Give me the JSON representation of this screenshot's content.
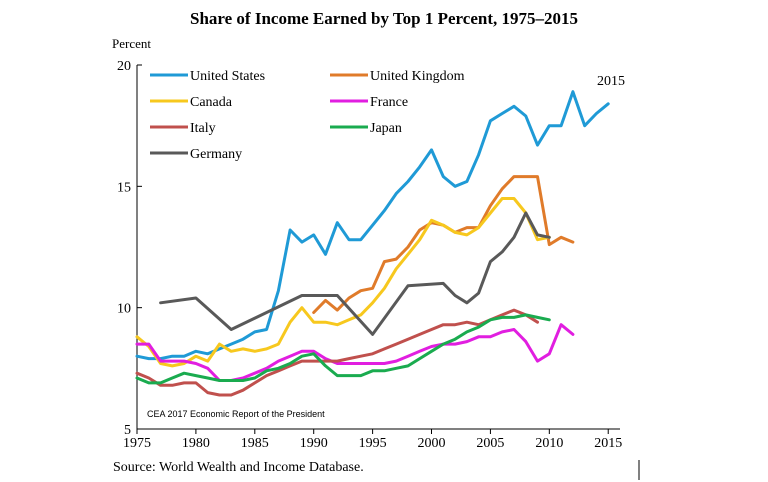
{
  "chart_data": {
    "type": "line",
    "title": "Share of Income Earned by Top 1 Percent, 1975–2015",
    "ylabel": "Percent",
    "xlabel": "",
    "xlim": [
      1975,
      2016
    ],
    "ylim": [
      5,
      20
    ],
    "x_ticks": [
      "1975",
      "1980",
      "1985",
      "1990",
      "1995",
      "2000",
      "2005",
      "2010",
      "2015"
    ],
    "y_ticks": [
      "5",
      "10",
      "15",
      "20"
    ],
    "grid": false,
    "legend_position": "top-left",
    "annotation_year": "2015",
    "annotation_caption": "CEA 2017 Economic Report of the President",
    "source": "Source: World Wealth and Income Database.",
    "series": [
      {
        "name": "United States",
        "color": "#1f9ad6",
        "points": [
          [
            1975,
            8.0
          ],
          [
            1976,
            7.9
          ],
          [
            1977,
            7.9
          ],
          [
            1978,
            8.0
          ],
          [
            1979,
            8.0
          ],
          [
            1980,
            8.2
          ],
          [
            1981,
            8.1
          ],
          [
            1982,
            8.3
          ],
          [
            1983,
            8.5
          ],
          [
            1984,
            8.7
          ],
          [
            1985,
            9.0
          ],
          [
            1986,
            9.1
          ],
          [
            1987,
            10.7
          ],
          [
            1988,
            13.2
          ],
          [
            1989,
            12.7
          ],
          [
            1990,
            13.0
          ],
          [
            1991,
            12.2
          ],
          [
            1992,
            13.5
          ],
          [
            1993,
            12.8
          ],
          [
            1994,
            12.8
          ],
          [
            1995,
            13.4
          ],
          [
            1996,
            14.0
          ],
          [
            1997,
            14.7
          ],
          [
            1998,
            15.2
          ],
          [
            1999,
            15.8
          ],
          [
            2000,
            16.5
          ],
          [
            2001,
            15.4
          ],
          [
            2002,
            15.0
          ],
          [
            2003,
            15.2
          ],
          [
            2004,
            16.3
          ],
          [
            2005,
            17.7
          ],
          [
            2006,
            18.0
          ],
          [
            2007,
            18.3
          ],
          [
            2008,
            17.9
          ],
          [
            2009,
            16.7
          ],
          [
            2010,
            17.5
          ],
          [
            2011,
            17.5
          ],
          [
            2012,
            18.9
          ],
          [
            2013,
            17.5
          ],
          [
            2014,
            18.0
          ],
          [
            2015,
            18.4
          ]
        ]
      },
      {
        "name": "United Kingdom",
        "color": "#e07b2a",
        "points": [
          [
            1990,
            9.8
          ],
          [
            1991,
            10.3
          ],
          [
            1992,
            9.9
          ],
          [
            1993,
            10.4
          ],
          [
            1994,
            10.7
          ],
          [
            1995,
            10.8
          ],
          [
            1996,
            11.9
          ],
          [
            1997,
            12.0
          ],
          [
            1998,
            12.5
          ],
          [
            1999,
            13.2
          ],
          [
            2000,
            13.5
          ],
          [
            2001,
            13.4
          ],
          [
            2002,
            13.1
          ],
          [
            2003,
            13.3
          ],
          [
            2004,
            13.3
          ],
          [
            2005,
            14.2
          ],
          [
            2006,
            14.9
          ],
          [
            2007,
            15.4
          ],
          [
            2008,
            15.4
          ],
          [
            2009,
            15.4
          ],
          [
            2010,
            12.6
          ],
          [
            2011,
            12.9
          ],
          [
            2012,
            12.7
          ]
        ]
      },
      {
        "name": "Canada",
        "color": "#f7c81e",
        "points": [
          [
            1975,
            8.8
          ],
          [
            1976,
            8.4
          ],
          [
            1977,
            7.7
          ],
          [
            1978,
            7.6
          ],
          [
            1979,
            7.7
          ],
          [
            1980,
            8.0
          ],
          [
            1981,
            7.8
          ],
          [
            1982,
            8.5
          ],
          [
            1983,
            8.2
          ],
          [
            1984,
            8.3
          ],
          [
            1985,
            8.2
          ],
          [
            1986,
            8.3
          ],
          [
            1987,
            8.5
          ],
          [
            1988,
            9.4
          ],
          [
            1989,
            10.0
          ],
          [
            1990,
            9.4
          ],
          [
            1991,
            9.4
          ],
          [
            1992,
            9.3
          ],
          [
            1993,
            9.5
          ],
          [
            1994,
            9.7
          ],
          [
            1995,
            10.2
          ],
          [
            1996,
            10.8
          ],
          [
            1997,
            11.6
          ],
          [
            1998,
            12.2
          ],
          [
            1999,
            12.8
          ],
          [
            2000,
            13.6
          ],
          [
            2001,
            13.4
          ],
          [
            2002,
            13.1
          ],
          [
            2003,
            13.0
          ],
          [
            2004,
            13.3
          ],
          [
            2005,
            13.9
          ],
          [
            2006,
            14.5
          ],
          [
            2007,
            14.5
          ],
          [
            2008,
            13.9
          ],
          [
            2009,
            12.8
          ],
          [
            2010,
            12.9
          ]
        ]
      },
      {
        "name": "France",
        "color": "#e11ee0",
        "points": [
          [
            1975,
            8.5
          ],
          [
            1976,
            8.5
          ],
          [
            1977,
            7.8
          ],
          [
            1978,
            7.8
          ],
          [
            1979,
            7.8
          ],
          [
            1980,
            7.7
          ],
          [
            1981,
            7.5
          ],
          [
            1982,
            7.0
          ],
          [
            1983,
            7.0
          ],
          [
            1984,
            7.1
          ],
          [
            1985,
            7.3
          ],
          [
            1986,
            7.5
          ],
          [
            1987,
            7.8
          ],
          [
            1988,
            8.0
          ],
          [
            1989,
            8.2
          ],
          [
            1990,
            8.2
          ],
          [
            1991,
            7.9
          ],
          [
            1992,
            7.7
          ],
          [
            1993,
            7.7
          ],
          [
            1994,
            7.7
          ],
          [
            1995,
            7.7
          ],
          [
            1996,
            7.7
          ],
          [
            1997,
            7.8
          ],
          [
            1998,
            8.0
          ],
          [
            1999,
            8.2
          ],
          [
            2000,
            8.4
          ],
          [
            2001,
            8.5
          ],
          [
            2002,
            8.5
          ],
          [
            2003,
            8.6
          ],
          [
            2004,
            8.8
          ],
          [
            2005,
            8.8
          ],
          [
            2006,
            9.0
          ],
          [
            2007,
            9.1
          ],
          [
            2008,
            8.6
          ],
          [
            2009,
            7.8
          ],
          [
            2010,
            8.1
          ],
          [
            2011,
            9.3
          ],
          [
            2012,
            8.9
          ]
        ]
      },
      {
        "name": "Italy",
        "color": "#c0504d",
        "points": [
          [
            1975,
            7.3
          ],
          [
            1976,
            7.1
          ],
          [
            1977,
            6.8
          ],
          [
            1978,
            6.8
          ],
          [
            1979,
            6.9
          ],
          [
            1980,
            6.9
          ],
          [
            1981,
            6.5
          ],
          [
            1982,
            6.4
          ],
          [
            1983,
            6.4
          ],
          [
            1984,
            6.6
          ],
          [
            1985,
            6.9
          ],
          [
            1986,
            7.2
          ],
          [
            1987,
            7.4
          ],
          [
            1988,
            7.6
          ],
          [
            1989,
            7.8
          ],
          [
            1990,
            7.8
          ],
          [
            1991,
            7.8
          ],
          [
            1992,
            7.8
          ],
          [
            1993,
            7.9
          ],
          [
            1994,
            8.0
          ],
          [
            1995,
            8.1
          ],
          [
            1996,
            8.3
          ],
          [
            1997,
            8.5
          ],
          [
            1998,
            8.7
          ],
          [
            1999,
            8.9
          ],
          [
            2000,
            9.1
          ],
          [
            2001,
            9.3
          ],
          [
            2002,
            9.3
          ],
          [
            2003,
            9.4
          ],
          [
            2004,
            9.3
          ],
          [
            2005,
            9.5
          ],
          [
            2006,
            9.7
          ],
          [
            2007,
            9.9
          ],
          [
            2008,
            9.7
          ],
          [
            2009,
            9.4
          ]
        ]
      },
      {
        "name": "Japan",
        "color": "#1aab4f",
        "points": [
          [
            1975,
            7.1
          ],
          [
            1976,
            6.9
          ],
          [
            1977,
            6.9
          ],
          [
            1978,
            7.1
          ],
          [
            1979,
            7.3
          ],
          [
            1980,
            7.2
          ],
          [
            1981,
            7.1
          ],
          [
            1982,
            7.0
          ],
          [
            1983,
            7.0
          ],
          [
            1984,
            7.0
          ],
          [
            1985,
            7.1
          ],
          [
            1986,
            7.4
          ],
          [
            1987,
            7.5
          ],
          [
            1988,
            7.7
          ],
          [
            1989,
            8.0
          ],
          [
            1990,
            8.1
          ],
          [
            1991,
            7.6
          ],
          [
            1992,
            7.2
          ],
          [
            1993,
            7.2
          ],
          [
            1994,
            7.2
          ],
          [
            1995,
            7.4
          ],
          [
            1996,
            7.4
          ],
          [
            1997,
            7.5
          ],
          [
            1998,
            7.6
          ],
          [
            1999,
            7.9
          ],
          [
            2000,
            8.2
          ],
          [
            2001,
            8.5
          ],
          [
            2002,
            8.7
          ],
          [
            2003,
            9.0
          ],
          [
            2004,
            9.2
          ],
          [
            2005,
            9.5
          ],
          [
            2006,
            9.6
          ],
          [
            2007,
            9.6
          ],
          [
            2008,
            9.7
          ],
          [
            2009,
            9.6
          ],
          [
            2010,
            9.5
          ]
        ]
      },
      {
        "name": "Germany",
        "color": "#595959",
        "points": [
          [
            1977,
            10.2
          ],
          [
            1980,
            10.4
          ],
          [
            1983,
            9.1
          ],
          [
            1986,
            9.8
          ],
          [
            1989,
            10.5
          ],
          [
            1992,
            10.5
          ],
          [
            1995,
            8.9
          ],
          [
            1998,
            10.9
          ],
          [
            2001,
            11.0
          ],
          [
            2002,
            10.5
          ],
          [
            2003,
            10.2
          ],
          [
            2004,
            10.6
          ],
          [
            2005,
            11.9
          ],
          [
            2006,
            12.3
          ],
          [
            2007,
            12.9
          ],
          [
            2008,
            13.9
          ],
          [
            2009,
            13.0
          ],
          [
            2010,
            12.9
          ]
        ]
      }
    ]
  }
}
